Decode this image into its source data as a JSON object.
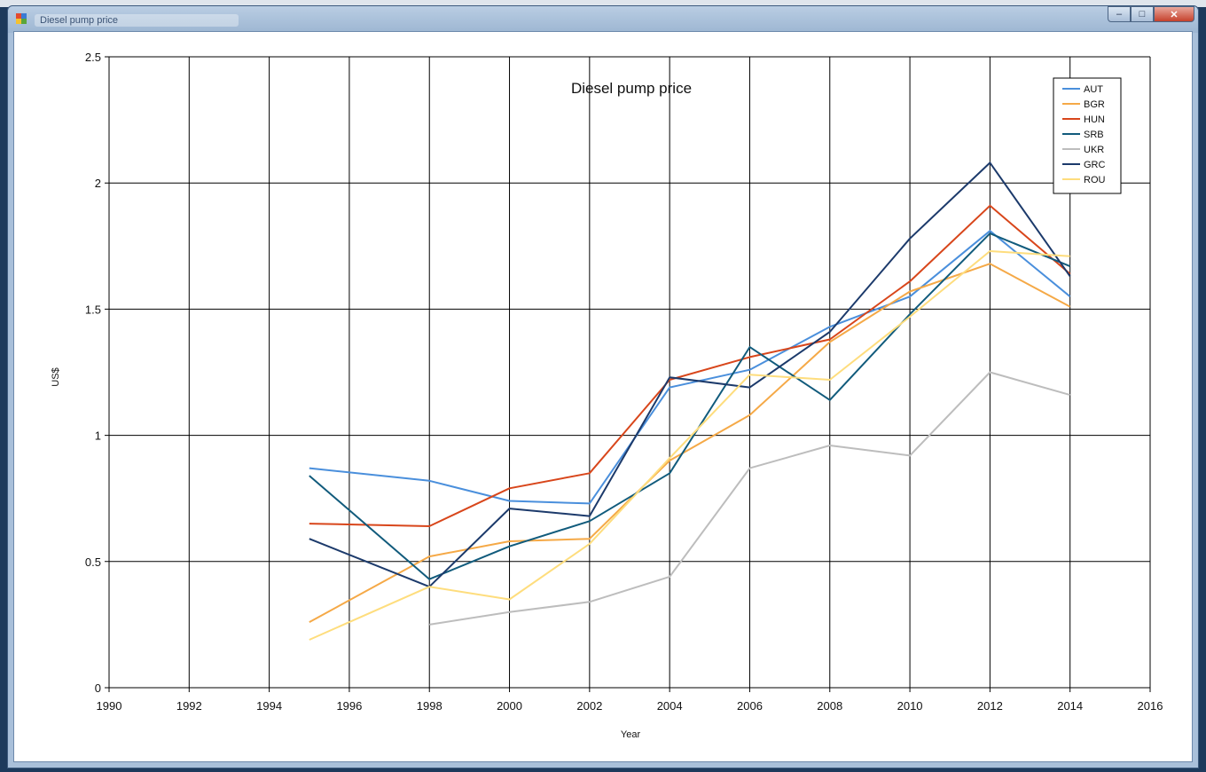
{
  "window": {
    "title": "Diesel pump price",
    "buttons": {
      "minimize": "–",
      "maximize": "□",
      "close": "✕"
    }
  },
  "chart_data": {
    "type": "line",
    "title": "Diesel pump price",
    "xlabel": "Year",
    "ylabel": "US$",
    "xlim": [
      1990,
      2016
    ],
    "ylim": [
      0,
      2.5
    ],
    "xticks": [
      "1990",
      "1992",
      "1994",
      "1996",
      "1998",
      "2000",
      "2002",
      "2004",
      "2006",
      "2008",
      "2010",
      "2012",
      "2014",
      "2016"
    ],
    "yticks": [
      "0",
      "0.5",
      "1",
      "1.5",
      "2",
      "2.5"
    ],
    "grid": true,
    "legend_position": "top-right",
    "series": [
      {
        "name": "AUT",
        "color": "#4a8fdc",
        "x": [
          1995,
          1998,
          2000,
          2002,
          2004,
          2006,
          2008,
          2010,
          2012,
          2014
        ],
        "y": [
          0.87,
          0.82,
          0.74,
          0.73,
          1.19,
          1.26,
          1.43,
          1.55,
          1.81,
          1.55
        ]
      },
      {
        "name": "BGR",
        "color": "#f5a947",
        "x": [
          1995,
          1998,
          2000,
          2002,
          2004,
          2006,
          2008,
          2010,
          2012,
          2014
        ],
        "y": [
          0.26,
          0.52,
          0.58,
          0.59,
          0.9,
          1.08,
          1.37,
          1.57,
          1.68,
          1.51
        ]
      },
      {
        "name": "HUN",
        "color": "#d8461b",
        "x": [
          1995,
          1998,
          2000,
          2002,
          2004,
          2006,
          2008,
          2010,
          2012,
          2014
        ],
        "y": [
          0.65,
          0.64,
          0.79,
          0.85,
          1.22,
          1.31,
          1.38,
          1.61,
          1.91,
          1.64
        ]
      },
      {
        "name": "SRB",
        "color": "#115b7c",
        "x": [
          1995,
          1998,
          2000,
          2002,
          2004,
          2006,
          2008,
          2010,
          2012,
          2014
        ],
        "y": [
          0.84,
          0.43,
          0.56,
          0.66,
          0.85,
          1.35,
          1.14,
          1.48,
          1.8,
          1.67
        ]
      },
      {
        "name": "UKR",
        "color": "#bdbdbd",
        "x": [
          1998,
          2000,
          2002,
          2004,
          2006,
          2008,
          2010,
          2012,
          2014
        ],
        "y": [
          0.25,
          0.3,
          0.34,
          0.44,
          0.87,
          0.96,
          0.92,
          1.25,
          1.16
        ]
      },
      {
        "name": "GRC",
        "color": "#1c3a6b",
        "x": [
          1995,
          1998,
          2000,
          2002,
          2004,
          2006,
          2008,
          2010,
          2012,
          2014
        ],
        "y": [
          0.59,
          0.4,
          0.71,
          0.68,
          1.23,
          1.19,
          1.41,
          1.78,
          2.08,
          1.63
        ]
      },
      {
        "name": "ROU",
        "color": "#fedd7d",
        "x": [
          1995,
          1998,
          2000,
          2002,
          2004,
          2006,
          2008,
          2010,
          2012,
          2014
        ],
        "y": [
          0.19,
          0.4,
          0.35,
          0.57,
          0.91,
          1.24,
          1.22,
          1.47,
          1.73,
          1.71
        ]
      }
    ]
  }
}
